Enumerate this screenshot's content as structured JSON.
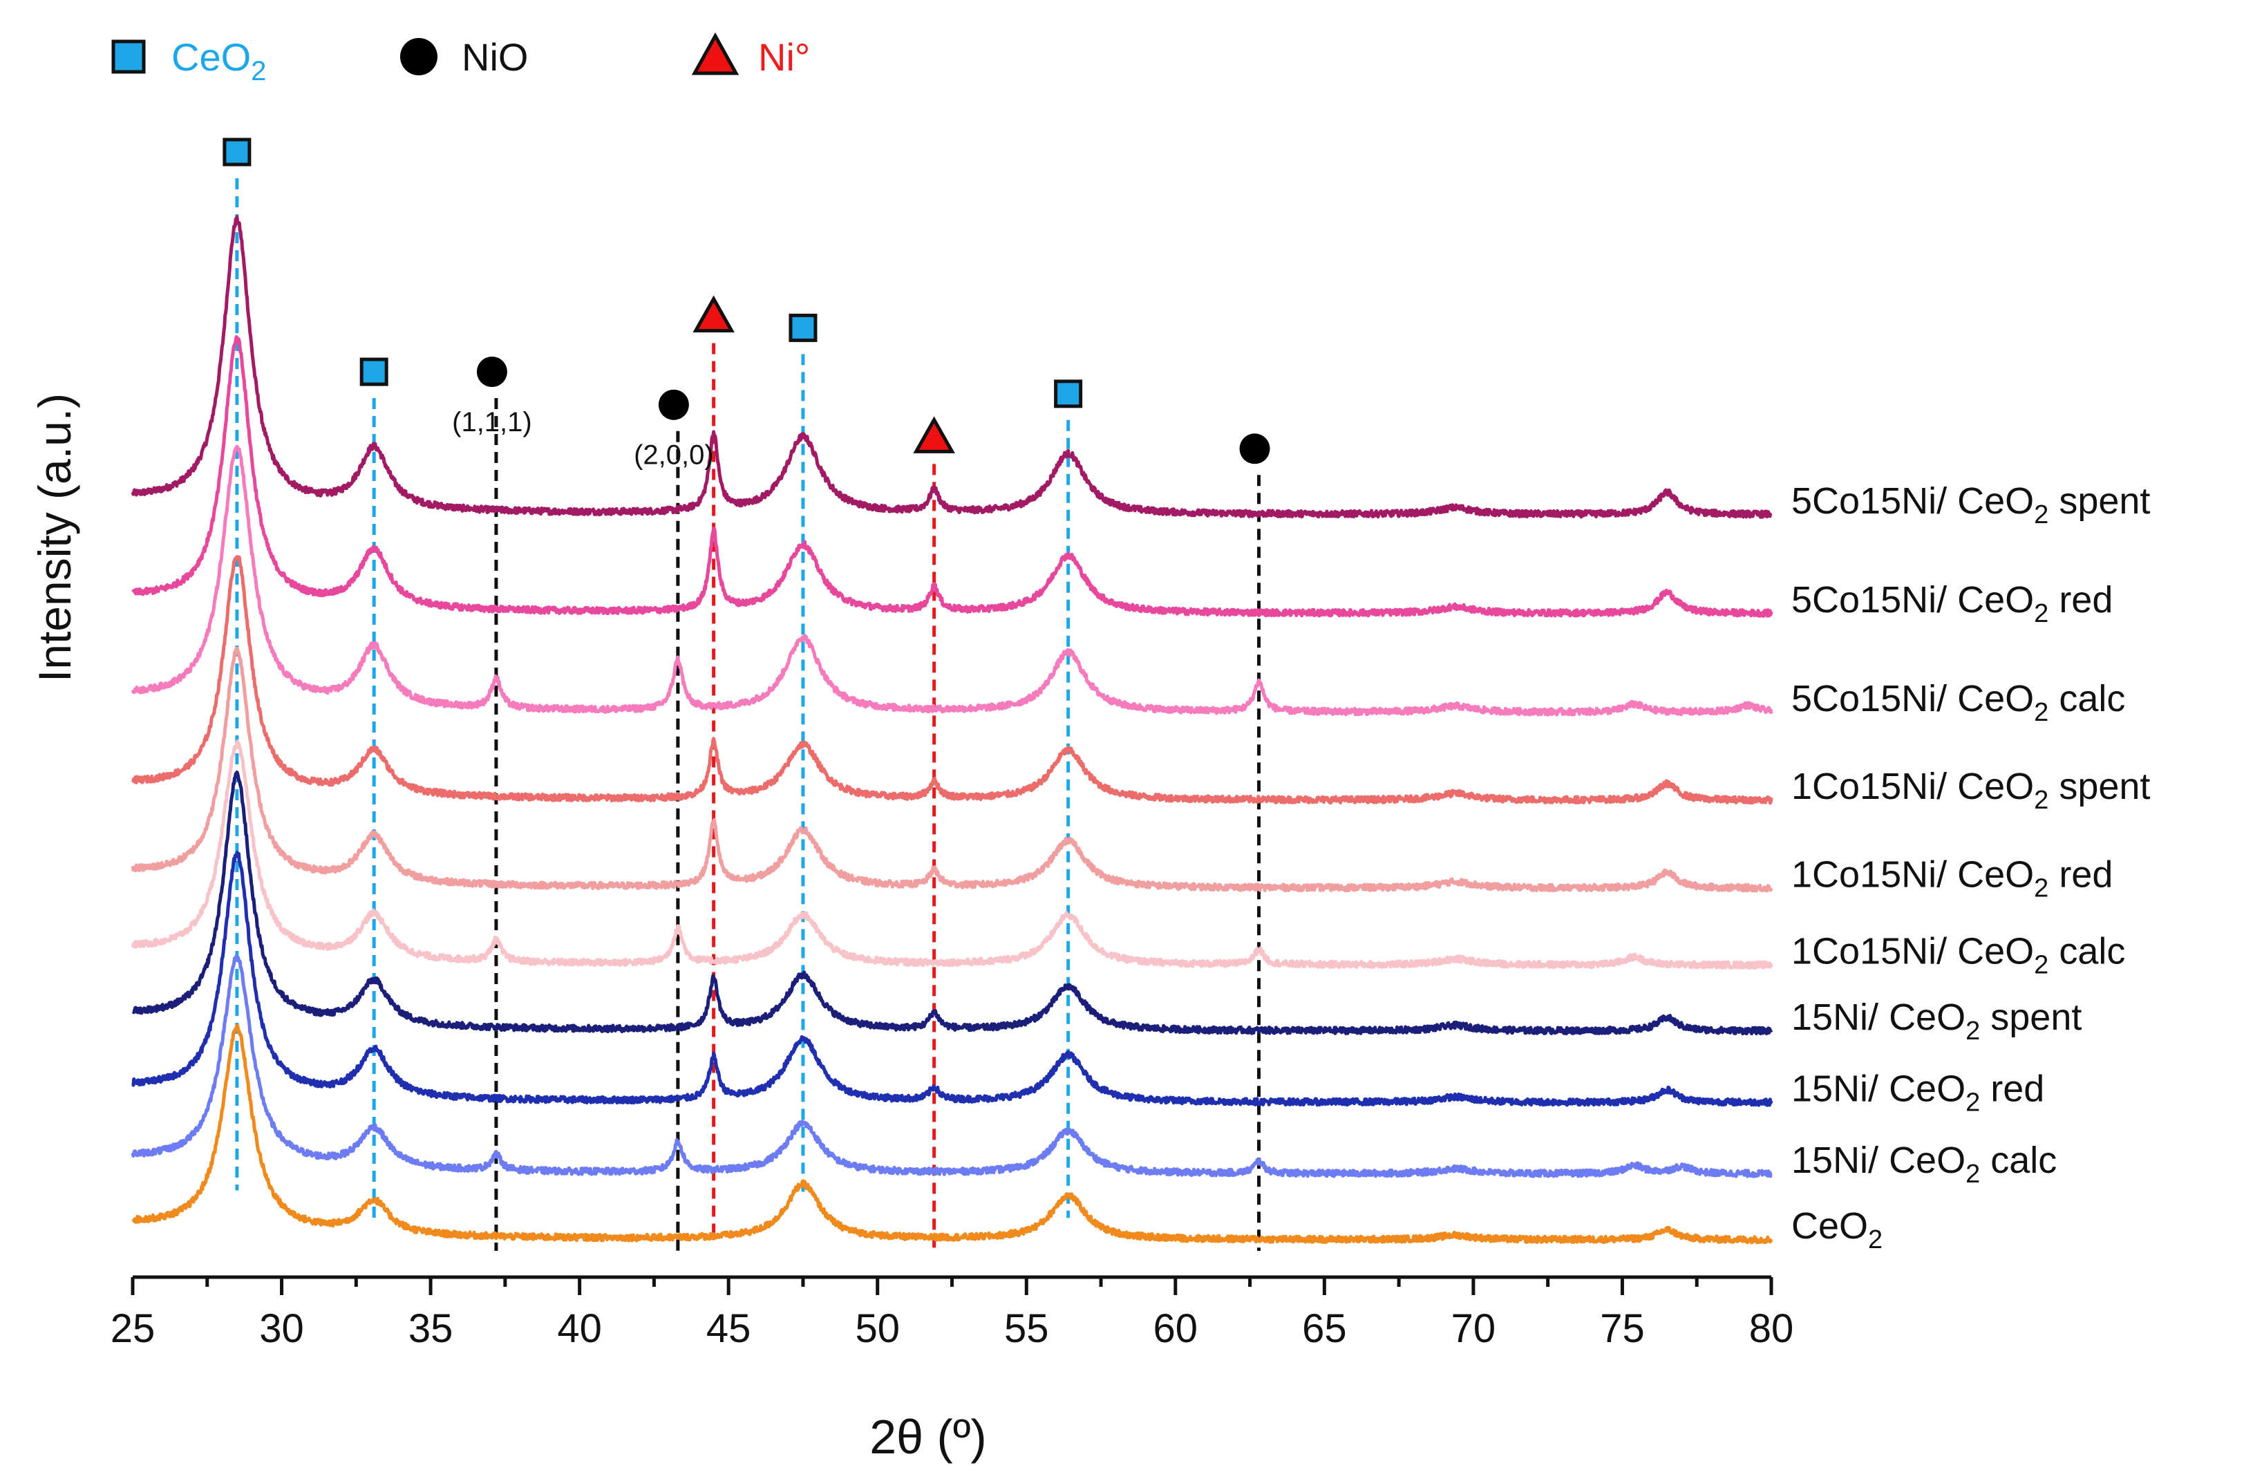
{
  "chart_data": {
    "type": "line",
    "title": "",
    "xlabel": "2θ (º)",
    "ylabel": "Intensity (a.u.)",
    "xlim": [
      25,
      80
    ],
    "x_ticks": [
      25,
      30,
      35,
      40,
      45,
      50,
      55,
      60,
      65,
      70,
      75,
      80
    ],
    "y_ticks": [],
    "legend": {
      "position": "top-left",
      "entries": [
        {
          "marker": "square",
          "label": "CeO",
          "sub": "2",
          "color": "#1ea7e8"
        },
        {
          "marker": "circle",
          "label": "NiO",
          "sub": "",
          "color": "#111111"
        },
        {
          "marker": "triangle",
          "label": "Ni°",
          "sub": "",
          "color": "#ee1c1c"
        }
      ]
    },
    "colors": {
      "ceo2_marker": "#1ea7e8",
      "nio_marker": "#000000",
      "ni_marker": "#ee1111",
      "ceo2_line": "#1ea7e8",
      "nio_line": "#111111",
      "ni_line": "#e31a1c"
    },
    "reference_peaks": [
      {
        "phase": "CeO2",
        "x": 28.5,
        "marker_level": 100,
        "line_bottom": 5.5
      },
      {
        "phase": "CeO2",
        "x": 33.1,
        "marker_level": 80,
        "line_bottom": 3
      },
      {
        "phase": "NiO",
        "x": 37.2,
        "marker_level": 80,
        "line_bottom": 0,
        "annotation": "(1,1,1)"
      },
      {
        "phase": "NiO",
        "x": 43.3,
        "marker_level": 77,
        "line_bottom": 0,
        "annotation": "(2,0,0)"
      },
      {
        "phase": "Ni",
        "x": 44.5,
        "marker_level": 85,
        "line_bottom": 1.6
      },
      {
        "phase": "CeO2",
        "x": 47.5,
        "marker_level": 84,
        "line_bottom": 5
      },
      {
        "phase": "Ni",
        "x": 51.9,
        "marker_level": 74,
        "line_bottom": 0
      },
      {
        "phase": "CeO2",
        "x": 56.4,
        "marker_level": 78,
        "line_bottom": 3
      },
      {
        "phase": "NiO",
        "x": 62.8,
        "marker_level": 73,
        "line_bottom": 0
      }
    ],
    "series": [
      {
        "name": "5Co15Ni/ CeO2 spent",
        "label": "5Co15Ni/ CeO",
        "sub": "2",
        "suffix": " spent",
        "color": "#a31a64",
        "offset": 67,
        "scale": 1.0,
        "peaks": [
          [
            28.5,
            26,
            0.55
          ],
          [
            33.1,
            5.5,
            0.6
          ],
          [
            44.5,
            7,
            0.18
          ],
          [
            47.5,
            7,
            0.7
          ],
          [
            51.9,
            2,
            0.2
          ],
          [
            56.4,
            5.5,
            0.7
          ],
          [
            69.4,
            0.6,
            0.7
          ],
          [
            76.5,
            2,
            0.4
          ]
        ]
      },
      {
        "name": "5Co15Ni/ CeO2 red",
        "label": "5Co15Ni/ CeO",
        "sub": "2",
        "suffix": " red",
        "color": "#e8489c",
        "offset": 58,
        "scale": 0.95,
        "peaks": [
          [
            28.5,
            25.5,
            0.55
          ],
          [
            33.1,
            5.5,
            0.6
          ],
          [
            44.5,
            7.5,
            0.18
          ],
          [
            47.5,
            6.5,
            0.7
          ],
          [
            51.9,
            2.3,
            0.2
          ],
          [
            56.4,
            5.5,
            0.7
          ],
          [
            69.4,
            0.6,
            0.7
          ],
          [
            76.5,
            2,
            0.4
          ]
        ]
      },
      {
        "name": "5Co15Ni/ CeO2 calc",
        "label": "5Co15Ni/ CeO",
        "sub": "2",
        "suffix": " calc",
        "color": "#f57bbd",
        "offset": 49,
        "scale": 0.9,
        "peaks": [
          [
            28.5,
            26,
            0.6
          ],
          [
            33.1,
            6,
            0.6
          ],
          [
            37.2,
            3,
            0.2
          ],
          [
            43.3,
            5,
            0.2
          ],
          [
            47.5,
            7.5,
            0.7
          ],
          [
            56.4,
            6,
            0.7
          ],
          [
            62.8,
            3,
            0.2
          ],
          [
            69.4,
            0.6,
            0.7
          ],
          [
            75.4,
            0.8,
            0.4
          ],
          [
            79.2,
            0.7,
            0.4
          ]
        ]
      },
      {
        "name": "1Co15Ni/ CeO2 spent",
        "label": "1Co15Ni/ CeO",
        "sub": "2",
        "suffix": " spent",
        "color": "#ec6b6b",
        "offset": 41,
        "scale": 1.0,
        "peaks": [
          [
            28.5,
            21.5,
            0.55
          ],
          [
            33.1,
            4,
            0.6
          ],
          [
            44.5,
            5,
            0.18
          ],
          [
            47.5,
            5,
            0.7
          ],
          [
            51.9,
            1.5,
            0.2
          ],
          [
            56.4,
            4.5,
            0.7
          ],
          [
            69.4,
            0.6,
            0.7
          ],
          [
            76.5,
            1.5,
            0.4
          ]
        ]
      },
      {
        "name": "1Co15Ni/ CeO2 red",
        "label": "1Co15Ni/ CeO",
        "sub": "2",
        "suffix": " red",
        "color": "#f19ea0",
        "offset": 33,
        "scale": 0.95,
        "peaks": [
          [
            28.5,
            22,
            0.55
          ],
          [
            33.1,
            4.5,
            0.6
          ],
          [
            44.5,
            6,
            0.18
          ],
          [
            47.5,
            5.5,
            0.7
          ],
          [
            51.9,
            1.5,
            0.2
          ],
          [
            56.4,
            4.5,
            0.7
          ],
          [
            69.4,
            0.6,
            0.7
          ],
          [
            76.5,
            1.5,
            0.4
          ]
        ]
      },
      {
        "name": "1Co15Ni/ CeO2 calc",
        "label": "1Co15Ni/ CeO",
        "sub": "2",
        "suffix": " calc",
        "color": "#f7c3c8",
        "offset": 26,
        "scale": 0.9,
        "peaks": [
          [
            28.5,
            21.5,
            0.6
          ],
          [
            33.1,
            4.5,
            0.6
          ],
          [
            37.2,
            2.2,
            0.2
          ],
          [
            43.3,
            3.5,
            0.2
          ],
          [
            47.5,
            5,
            0.7
          ],
          [
            56.4,
            5,
            0.7
          ],
          [
            62.8,
            1.5,
            0.2
          ],
          [
            69.4,
            0.6,
            0.7
          ],
          [
            75.4,
            0.8,
            0.4
          ]
        ]
      },
      {
        "name": "15Ni/ CeO2 spent",
        "label": "15Ni/ CeO",
        "sub": "2",
        "suffix": " spent",
        "color": "#1c1f7a",
        "offset": 20,
        "scale": 1.0,
        "peaks": [
          [
            28.5,
            22.5,
            0.55
          ],
          [
            33.1,
            4,
            0.6
          ],
          [
            44.5,
            4.5,
            0.18
          ],
          [
            47.5,
            5,
            0.7
          ],
          [
            51.9,
            1.5,
            0.2
          ],
          [
            56.4,
            4,
            0.7
          ],
          [
            69.4,
            0.5,
            0.7
          ],
          [
            76.5,
            1.2,
            0.4
          ]
        ]
      },
      {
        "name": "15Ni/ CeO2 red",
        "label": "15Ni/ CeO",
        "sub": "2",
        "suffix": " red",
        "color": "#1f2fb0",
        "offset": 13.5,
        "scale": 0.95,
        "peaks": [
          [
            28.5,
            23,
            0.55
          ],
          [
            33.1,
            4.5,
            0.6
          ],
          [
            44.5,
            4,
            0.18
          ],
          [
            47.5,
            6,
            0.7
          ],
          [
            51.9,
            1.2,
            0.2
          ],
          [
            56.4,
            4.5,
            0.7
          ],
          [
            69.4,
            0.5,
            0.7
          ],
          [
            76.5,
            1.2,
            0.4
          ]
        ]
      },
      {
        "name": "15Ni/ CeO2 calc",
        "label": "15Ni/ CeO",
        "sub": "2",
        "suffix": " calc",
        "color": "#6d7cf2",
        "offset": 7,
        "scale": 0.9,
        "peaks": [
          [
            28.5,
            21,
            0.6
          ],
          [
            33.1,
            4,
            0.6
          ],
          [
            37.2,
            1.6,
            0.2
          ],
          [
            43.3,
            3,
            0.2
          ],
          [
            47.5,
            5,
            0.7
          ],
          [
            56.4,
            4.3,
            0.7
          ],
          [
            62.8,
            1.2,
            0.2
          ],
          [
            69.4,
            0.5,
            0.7
          ],
          [
            75.4,
            0.8,
            0.4
          ],
          [
            77,
            0.7,
            0.4
          ]
        ]
      },
      {
        "name": "CeO2",
        "label": "CeO",
        "sub": "2",
        "suffix": "",
        "color": "#f08a1c",
        "offset": 1,
        "scale": 1.0,
        "peaks": [
          [
            28.5,
            18.5,
            0.6
          ],
          [
            33.1,
            3,
            0.6
          ],
          [
            47.5,
            5,
            0.7
          ],
          [
            56.4,
            4,
            0.7
          ],
          [
            69.4,
            0.4,
            0.7
          ],
          [
            76.5,
            0.9,
            0.4
          ]
        ]
      }
    ]
  }
}
